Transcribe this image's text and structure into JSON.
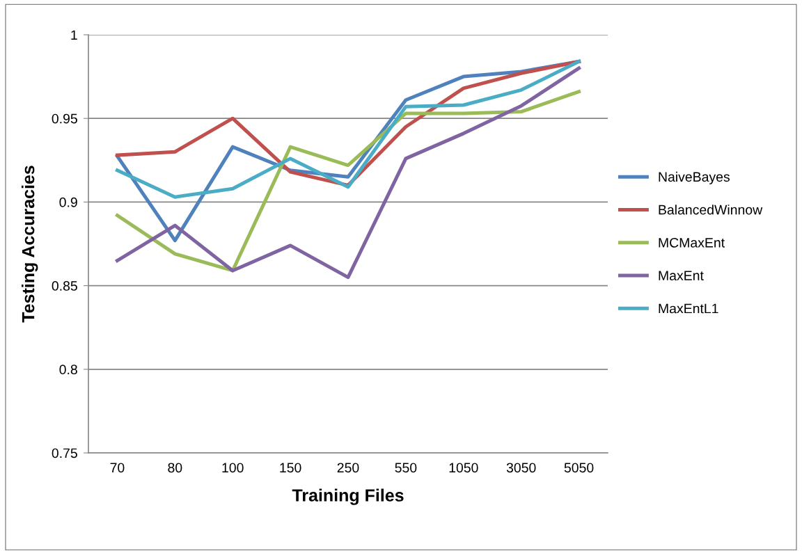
{
  "chart_data": {
    "type": "line",
    "xlabel": "Training Files",
    "ylabel": "Testing Accuracies",
    "categories": [
      "70",
      "80",
      "100",
      "150",
      "250",
      "550",
      "1050",
      "3050",
      "5050"
    ],
    "series": [
      {
        "name": "NaiveBayes",
        "color": "#4f81bd",
        "values": [
          0.9275,
          0.877,
          0.933,
          0.919,
          0.915,
          0.961,
          0.975,
          0.978,
          0.984
        ]
      },
      {
        "name": "BalancedWinnow",
        "color": "#c0504d",
        "values": [
          0.928,
          0.93,
          0.95,
          0.918,
          0.91,
          0.945,
          0.968,
          0.977,
          0.984
        ]
      },
      {
        "name": "MCMaxEnt",
        "color": "#9bbb59",
        "values": [
          0.892,
          0.869,
          0.859,
          0.933,
          0.922,
          0.953,
          0.953,
          0.954,
          0.966
        ]
      },
      {
        "name": "MaxEnt",
        "color": "#8064a2",
        "values": [
          0.865,
          0.886,
          0.859,
          0.874,
          0.855,
          0.926,
          0.941,
          0.9575,
          0.98
        ]
      },
      {
        "name": "MaxEntL1",
        "color": "#4bacc6",
        "values": [
          0.919,
          0.903,
          0.908,
          0.926,
          0.909,
          0.957,
          0.958,
          0.967,
          0.984
        ]
      }
    ],
    "ylim": [
      0.75,
      1
    ],
    "yticks": [
      {
        "value": 0.75,
        "label": "0.75"
      },
      {
        "value": 0.8,
        "label": "0.8"
      },
      {
        "value": 0.85,
        "label": "0.85"
      },
      {
        "value": 0.9,
        "label": "0.9"
      },
      {
        "value": 0.95,
        "label": "0.95"
      },
      {
        "value": 1,
        "label": "1"
      }
    ],
    "grid": "y",
    "legend": "right",
    "marker": "none",
    "line_style": "solid"
  }
}
